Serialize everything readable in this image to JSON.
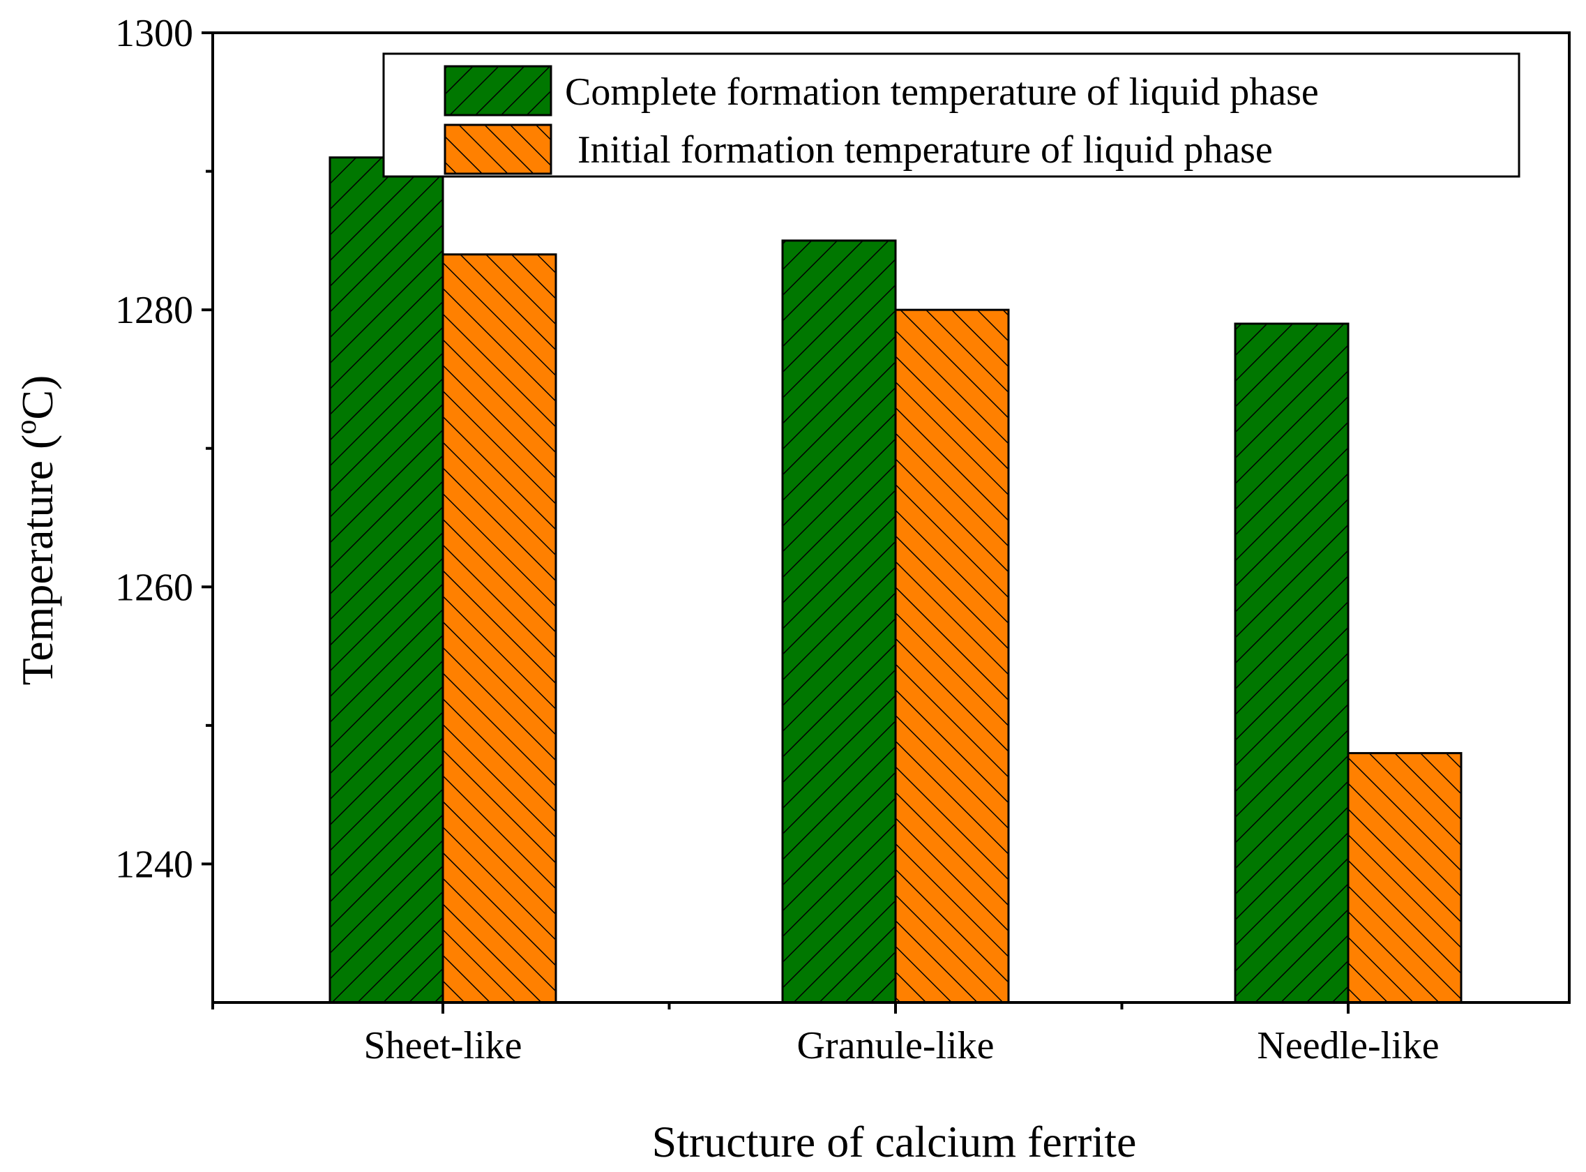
{
  "chart_data": {
    "type": "bar",
    "title": "",
    "xlabel": "Structure of calcium ferrite",
    "ylabel_main": "Temperature (",
    "ylabel_sup": "o",
    "ylabel_tail": "C)",
    "categories": [
      "Sheet-like",
      "Granule-like",
      "Needle-like"
    ],
    "ylim": [
      1230,
      1300
    ],
    "yticks": [
      1240,
      1260,
      1280,
      1300
    ],
    "yticks_minor": [
      1250,
      1270,
      1290
    ],
    "grid": false,
    "legend_position": "top-right",
    "series": [
      {
        "name": "Complete formation temperature of liquid phase",
        "values": [
          1291,
          1285,
          1279
        ],
        "color": "#007700",
        "hatch": "forward-diagonal"
      },
      {
        "name": "Initial formation temperature of liquid phase",
        "values": [
          1284,
          1280,
          1248
        ],
        "color": "#FF8000",
        "hatch": "backward-diagonal"
      }
    ]
  }
}
